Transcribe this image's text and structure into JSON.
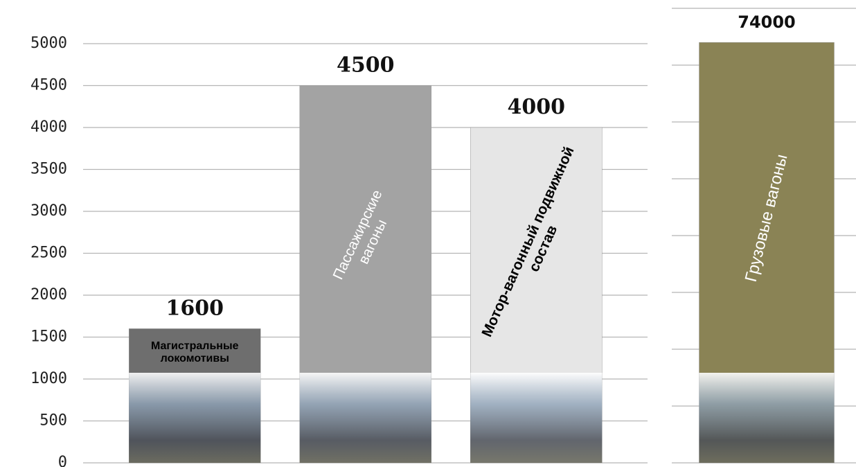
{
  "chart_data": [
    {
      "type": "bar",
      "categories": [
        "Магистральные локомотивы",
        "Пассажирские вагоны",
        "Мотор-вагонный подвижной состав"
      ],
      "values": [
        1600,
        4500,
        4000
      ],
      "colors": [
        "#6e6e6e",
        "#a3a3a3",
        "#e6e6e6"
      ],
      "ylim": [
        0,
        5000
      ],
      "yticks": [
        0,
        500,
        1000,
        1500,
        2000,
        2500,
        3000,
        3500,
        4000,
        4500,
        5000
      ],
      "grid": true,
      "tick_labels": true
    },
    {
      "type": "bar",
      "categories": [
        "Грузовые вагоны"
      ],
      "values": [
        74000
      ],
      "colors": [
        "#8a8355"
      ],
      "ylim": [
        0,
        80000
      ],
      "yticks": [
        0,
        10000,
        20000,
        30000,
        40000,
        50000,
        60000,
        70000,
        80000
      ],
      "grid": true,
      "tick_labels": false
    }
  ]
}
